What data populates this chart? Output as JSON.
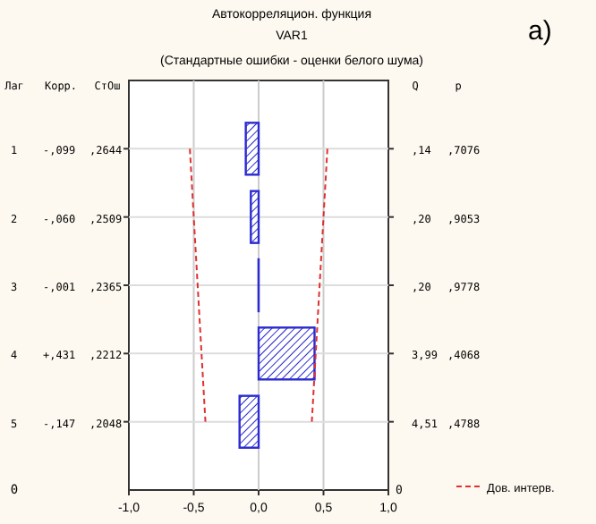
{
  "chart_data": {
    "type": "bar",
    "orientation": "horizontal",
    "title": "Автокорреляцион. функция",
    "subtitle": "VAR1",
    "categories": [
      null,
      null,
      null,
      null,
      null
    ],
    "xlim": [
      -1,
      1
    ],
    "xticks": [
      {
        "value": -1,
        "label": "-1,0"
      },
      {
        "value": -0.5,
        "label": "-0,5"
      },
      {
        "value": 0,
        "label": "0,0"
      },
      {
        "value": 0.5,
        "label": "0,5"
      },
      {
        "value": 1,
        "label": "1,0"
      }
    ],
    "grid": true,
    "legend": "bottom right",
    "series": [
      {
        "type": "bar",
        "color": "#2b2bd0",
        "values": [
          -0.099,
          -0.06,
          -0.001,
          0.431,
          -0.147
        ]
      },
      {
        "type": "line",
        "name": "Дов. интерв.",
        "color": "#e03030",
        "line_style": "dashed",
        "values": [
          -0.53,
          -0.5,
          -0.47,
          -0.44,
          -0.41
        ]
      },
      {
        "type": "line",
        "color": "#e03030",
        "line_style": "dashed",
        "values": [
          0.53,
          0.5,
          0.47,
          0.44,
          0.41
        ]
      }
    ],
    "annotations": [
      "а)",
      "(Стандартные ошибки - оценки белого шума)",
      "Лаг",
      "Корр.",
      "СтОш",
      "Q",
      "p",
      "0",
      "1",
      "-,099",
      ",2644",
      ",14",
      ",7076",
      "2",
      "-,060",
      ",2509",
      ",20",
      ",9053",
      "3",
      "-,001",
      ",2365",
      ",20",
      ",9778",
      "4",
      "+,431",
      ",2212",
      "3,99",
      ",4068",
      "5",
      "-,147",
      ",2048",
      "4,51",
      ",4788"
    ]
  }
}
